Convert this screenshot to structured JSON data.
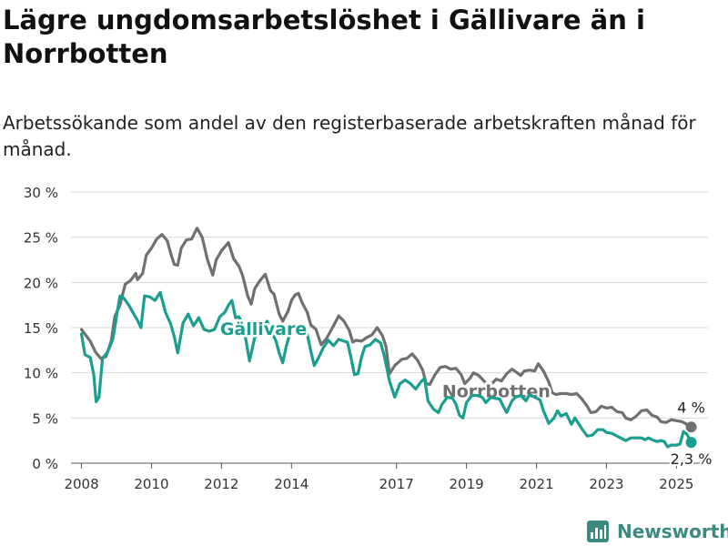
{
  "header": {
    "title": "Lägre ungdomsarbetslöshet i Gällivare än i Norrbotten",
    "subtitle": "Arbetssökande som andel av den registerbaserade arbetskraften månad för månad."
  },
  "brand": {
    "name": "Newsworthy",
    "color": "#3a8a82",
    "icon": "bar-chart-logo-icon"
  },
  "chart_data": {
    "type": "line",
    "title": "Lägre ungdomsarbetslöshet i Gällivare än i Norrbotten",
    "ylabel": "",
    "xlabel": "",
    "xlim": [
      2007.7,
      2025.9
    ],
    "ylim": [
      0,
      30
    ],
    "y_ticks": [
      0,
      5,
      10,
      15,
      20,
      25,
      30
    ],
    "y_tick_labels": [
      "0 %",
      "5 %",
      "10 %",
      "15 %",
      "20 %",
      "25 %",
      "30 %"
    ],
    "x_ticks": [
      2008,
      2010,
      2012,
      2014,
      2017,
      2019,
      2021,
      2023,
      2025
    ],
    "x_tick_labels": [
      "2008",
      "2010",
      "2012",
      "2014",
      "2017",
      "2019",
      "2021",
      "2023",
      "2025"
    ],
    "grid": true,
    "series": [
      {
        "name": "Norrbotten",
        "color": "#707070",
        "end_label": "4 %",
        "points": [
          [
            2008.0,
            14.8
          ],
          [
            2008.25,
            13.5
          ],
          [
            2008.4,
            12.3
          ],
          [
            2008.55,
            11.6
          ],
          [
            2008.7,
            11.8
          ],
          [
            2008.85,
            13.5
          ],
          [
            2008.95,
            16.2
          ],
          [
            2009.1,
            17.5
          ],
          [
            2009.25,
            19.8
          ],
          [
            2009.4,
            20.2
          ],
          [
            2009.55,
            21.0
          ],
          [
            2009.6,
            20.3
          ],
          [
            2009.75,
            21.0
          ],
          [
            2009.85,
            23.0
          ],
          [
            2010.0,
            23.8
          ],
          [
            2010.15,
            24.8
          ],
          [
            2010.3,
            25.3
          ],
          [
            2010.45,
            24.6
          ],
          [
            2010.55,
            23.2
          ],
          [
            2010.65,
            22.0
          ],
          [
            2010.75,
            21.9
          ],
          [
            2010.85,
            23.8
          ],
          [
            2011.0,
            24.7
          ],
          [
            2011.15,
            24.8
          ],
          [
            2011.3,
            26.0
          ],
          [
            2011.45,
            25.0
          ],
          [
            2011.6,
            22.5
          ],
          [
            2011.75,
            20.8
          ],
          [
            2011.85,
            22.5
          ],
          [
            2012.0,
            23.5
          ],
          [
            2012.2,
            24.4
          ],
          [
            2012.35,
            22.6
          ],
          [
            2012.5,
            21.8
          ],
          [
            2012.6,
            20.8
          ],
          [
            2012.75,
            18.5
          ],
          [
            2012.85,
            17.6
          ],
          [
            2012.95,
            19.3
          ],
          [
            2013.1,
            20.2
          ],
          [
            2013.25,
            20.9
          ],
          [
            2013.4,
            19.1
          ],
          [
            2013.5,
            18.7
          ],
          [
            2013.65,
            16.5
          ],
          [
            2013.75,
            15.7
          ],
          [
            2013.9,
            16.8
          ],
          [
            2014.0,
            18.0
          ],
          [
            2014.1,
            18.6
          ],
          [
            2014.2,
            18.8
          ],
          [
            2014.3,
            17.8
          ],
          [
            2014.45,
            16.7
          ],
          [
            2014.55,
            15.3
          ],
          [
            2014.7,
            14.8
          ],
          [
            2014.85,
            13.1
          ],
          [
            2015.0,
            13.8
          ],
          [
            2015.2,
            15.2
          ],
          [
            2015.35,
            16.3
          ],
          [
            2015.5,
            15.7
          ],
          [
            2015.65,
            14.7
          ],
          [
            2015.75,
            13.4
          ],
          [
            2015.85,
            13.6
          ],
          [
            2016.0,
            13.5
          ],
          [
            2016.15,
            13.9
          ],
          [
            2016.3,
            14.2
          ],
          [
            2016.45,
            15.0
          ],
          [
            2016.6,
            14.1
          ],
          [
            2016.7,
            12.9
          ],
          [
            2016.8,
            9.9
          ],
          [
            2016.95,
            10.8
          ],
          [
            2017.15,
            11.5
          ],
          [
            2017.3,
            11.6
          ],
          [
            2017.45,
            12.1
          ],
          [
            2017.6,
            11.4
          ],
          [
            2017.75,
            10.3
          ],
          [
            2017.85,
            8.8
          ],
          [
            2017.95,
            8.7
          ],
          [
            2018.1,
            9.8
          ],
          [
            2018.25,
            10.6
          ],
          [
            2018.4,
            10.7
          ],
          [
            2018.55,
            10.4
          ],
          [
            2018.7,
            10.5
          ],
          [
            2018.85,
            9.8
          ],
          [
            2018.95,
            8.8
          ],
          [
            2019.1,
            9.4
          ],
          [
            2019.2,
            10.0
          ],
          [
            2019.35,
            9.7
          ],
          [
            2019.5,
            9.1
          ],
          [
            2019.6,
            8.6
          ],
          [
            2019.75,
            8.9
          ],
          [
            2019.85,
            9.3
          ],
          [
            2020.0,
            9.1
          ],
          [
            2020.15,
            9.9
          ],
          [
            2020.3,
            10.4
          ],
          [
            2020.45,
            10.0
          ],
          [
            2020.55,
            9.7
          ],
          [
            2020.65,
            10.2
          ],
          [
            2020.8,
            10.3
          ],
          [
            2020.95,
            10.2
          ],
          [
            2021.05,
            11.0
          ],
          [
            2021.2,
            10.2
          ],
          [
            2021.35,
            9.0
          ],
          [
            2021.45,
            7.8
          ],
          [
            2021.55,
            7.6
          ],
          [
            2021.7,
            7.7
          ],
          [
            2021.85,
            7.7
          ],
          [
            2022.0,
            7.6
          ],
          [
            2022.15,
            7.7
          ],
          [
            2022.3,
            7.1
          ],
          [
            2022.45,
            6.3
          ],
          [
            2022.55,
            5.6
          ],
          [
            2022.7,
            5.7
          ],
          [
            2022.85,
            6.3
          ],
          [
            2023.0,
            6.1
          ],
          [
            2023.15,
            6.2
          ],
          [
            2023.3,
            5.7
          ],
          [
            2023.45,
            5.6
          ],
          [
            2023.55,
            5.0
          ],
          [
            2023.7,
            4.8
          ],
          [
            2023.85,
            5.2
          ],
          [
            2024.0,
            5.8
          ],
          [
            2024.15,
            5.9
          ],
          [
            2024.3,
            5.3
          ],
          [
            2024.45,
            5.1
          ],
          [
            2024.55,
            4.6
          ],
          [
            2024.7,
            4.5
          ],
          [
            2024.85,
            4.8
          ],
          [
            2025.0,
            4.7
          ],
          [
            2025.15,
            4.6
          ],
          [
            2025.3,
            4.3
          ],
          [
            2025.42,
            4.0
          ]
        ]
      },
      {
        "name": "Gällivare",
        "color": "#1a9e8f",
        "end_label": "2,3 %",
        "points": [
          [
            2008.0,
            14.3
          ],
          [
            2008.1,
            12.0
          ],
          [
            2008.25,
            11.7
          ],
          [
            2008.35,
            9.8
          ],
          [
            2008.42,
            6.8
          ],
          [
            2008.5,
            7.3
          ],
          [
            2008.6,
            11.6
          ],
          [
            2008.75,
            12.3
          ],
          [
            2008.9,
            13.8
          ],
          [
            2009.0,
            16.2
          ],
          [
            2009.1,
            18.5
          ],
          [
            2009.2,
            18.3
          ],
          [
            2009.35,
            17.5
          ],
          [
            2009.45,
            16.8
          ],
          [
            2009.6,
            15.8
          ],
          [
            2009.7,
            15.0
          ],
          [
            2009.8,
            18.5
          ],
          [
            2009.95,
            18.4
          ],
          [
            2010.1,
            18.0
          ],
          [
            2010.25,
            18.9
          ],
          [
            2010.4,
            16.7
          ],
          [
            2010.55,
            15.4
          ],
          [
            2010.65,
            14.0
          ],
          [
            2010.75,
            12.2
          ],
          [
            2010.9,
            15.5
          ],
          [
            2011.05,
            16.5
          ],
          [
            2011.2,
            15.2
          ],
          [
            2011.35,
            16.1
          ],
          [
            2011.5,
            14.8
          ],
          [
            2011.65,
            14.6
          ],
          [
            2011.8,
            14.8
          ],
          [
            2011.95,
            16.2
          ],
          [
            2012.1,
            16.7
          ],
          [
            2012.2,
            17.5
          ],
          [
            2012.3,
            18.0
          ],
          [
            2012.4,
            16.1
          ],
          [
            2012.5,
            16.2
          ],
          [
            2012.6,
            15.4
          ],
          [
            2012.7,
            13.6
          ],
          [
            2012.8,
            11.3
          ],
          [
            2012.95,
            13.9
          ],
          [
            2013.15,
            14.5
          ],
          [
            2013.3,
            15.7
          ],
          [
            2013.45,
            14.3
          ],
          [
            2013.55,
            13.6
          ],
          [
            2013.65,
            12.2
          ],
          [
            2013.75,
            11.1
          ],
          [
            2013.85,
            12.9
          ],
          [
            2014.0,
            15.0
          ],
          [
            2014.15,
            14.8
          ],
          [
            2014.3,
            14.5
          ],
          [
            2014.45,
            14.3
          ],
          [
            2014.55,
            12.4
          ],
          [
            2014.65,
            10.8
          ],
          [
            2014.75,
            11.5
          ],
          [
            2014.9,
            12.7
          ],
          [
            2015.05,
            13.6
          ],
          [
            2015.2,
            13.0
          ],
          [
            2015.35,
            13.7
          ],
          [
            2015.5,
            13.5
          ],
          [
            2015.6,
            13.4
          ],
          [
            2015.7,
            11.7
          ],
          [
            2015.8,
            9.8
          ],
          [
            2015.9,
            9.9
          ],
          [
            2016.0,
            11.7
          ],
          [
            2016.1,
            12.9
          ],
          [
            2016.25,
            13.1
          ],
          [
            2016.4,
            13.7
          ],
          [
            2016.55,
            13.3
          ],
          [
            2016.65,
            11.9
          ],
          [
            2016.8,
            9.1
          ],
          [
            2016.95,
            7.3
          ],
          [
            2017.1,
            8.8
          ],
          [
            2017.25,
            9.2
          ],
          [
            2017.4,
            8.8
          ],
          [
            2017.55,
            8.2
          ],
          [
            2017.7,
            9.0
          ],
          [
            2017.8,
            9.4
          ],
          [
            2017.9,
            6.9
          ],
          [
            2018.05,
            6.0
          ],
          [
            2018.2,
            5.6
          ],
          [
            2018.3,
            6.5
          ],
          [
            2018.45,
            7.3
          ],
          [
            2018.6,
            7.2
          ],
          [
            2018.7,
            6.5
          ],
          [
            2018.8,
            5.3
          ],
          [
            2018.9,
            5.0
          ],
          [
            2019.0,
            6.7
          ],
          [
            2019.15,
            7.5
          ],
          [
            2019.3,
            7.5
          ],
          [
            2019.45,
            7.3
          ],
          [
            2019.55,
            6.7
          ],
          [
            2019.7,
            7.3
          ],
          [
            2019.8,
            7.2
          ],
          [
            2019.95,
            7.1
          ],
          [
            2020.05,
            6.3
          ],
          [
            2020.15,
            5.6
          ],
          [
            2020.3,
            6.9
          ],
          [
            2020.4,
            7.3
          ],
          [
            2020.55,
            7.5
          ],
          [
            2020.7,
            6.9
          ],
          [
            2020.8,
            7.6
          ],
          [
            2020.95,
            7.3
          ],
          [
            2021.1,
            7.0
          ],
          [
            2021.2,
            5.8
          ],
          [
            2021.35,
            4.4
          ],
          [
            2021.5,
            5.0
          ],
          [
            2021.6,
            5.8
          ],
          [
            2021.7,
            5.2
          ],
          [
            2021.85,
            5.5
          ],
          [
            2022.0,
            4.3
          ],
          [
            2022.1,
            5.0
          ],
          [
            2022.2,
            4.4
          ],
          [
            2022.3,
            3.8
          ],
          [
            2022.45,
            3.0
          ],
          [
            2022.6,
            3.1
          ],
          [
            2022.75,
            3.7
          ],
          [
            2022.9,
            3.7
          ],
          [
            2023.0,
            3.4
          ],
          [
            2023.15,
            3.3
          ],
          [
            2023.3,
            3.0
          ],
          [
            2023.45,
            2.7
          ],
          [
            2023.55,
            2.5
          ],
          [
            2023.7,
            2.8
          ],
          [
            2023.85,
            2.8
          ],
          [
            2024.0,
            2.8
          ],
          [
            2024.1,
            2.6
          ],
          [
            2024.2,
            2.8
          ],
          [
            2024.3,
            2.6
          ],
          [
            2024.45,
            2.4
          ],
          [
            2024.55,
            2.5
          ],
          [
            2024.65,
            2.4
          ],
          [
            2024.75,
            1.8
          ],
          [
            2024.85,
            2.0
          ],
          [
            2025.0,
            2.0
          ],
          [
            2025.1,
            2.1
          ],
          [
            2025.2,
            3.5
          ],
          [
            2025.3,
            3.2
          ],
          [
            2025.42,
            2.3
          ]
        ]
      }
    ]
  }
}
